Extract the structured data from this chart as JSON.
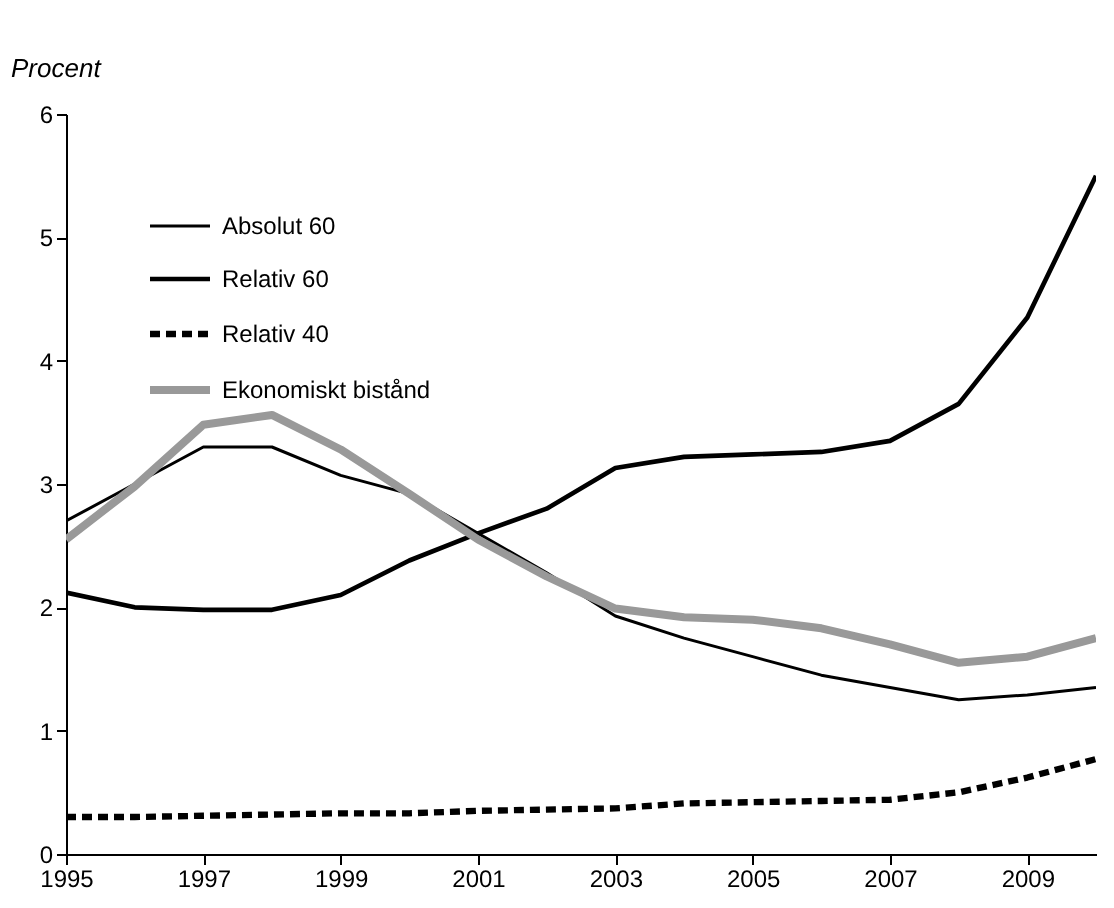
{
  "chart_data": {
    "type": "line",
    "ylabel": "Procent",
    "x": [
      1995,
      1996,
      1997,
      1998,
      1999,
      2000,
      2001,
      2002,
      2003,
      2004,
      2005,
      2006,
      2007,
      2008,
      2009,
      2010
    ],
    "series": [
      {
        "name": "Absolut 60",
        "color": "#000000",
        "line_style": "solid",
        "values": [
          2.7,
          3.0,
          3.3,
          3.3,
          3.07,
          2.92,
          2.6,
          2.28,
          1.93,
          1.75,
          1.6,
          1.45,
          1.35,
          1.25,
          1.29,
          1.35
        ]
      },
      {
        "name": "Relativ 60",
        "color": "#000000",
        "line_style": "solid",
        "values": [
          2.12,
          2.0,
          1.98,
          1.98,
          2.1,
          2.38,
          2.6,
          2.8,
          3.13,
          3.22,
          3.24,
          3.26,
          3.35,
          3.65,
          4.35,
          5.5
        ]
      },
      {
        "name": "Relativ 40",
        "color": "#000000",
        "line_style": "dashed",
        "values": [
          0.3,
          0.3,
          0.31,
          0.32,
          0.33,
          0.33,
          0.35,
          0.36,
          0.37,
          0.41,
          0.42,
          0.43,
          0.44,
          0.5,
          0.62,
          0.77
        ]
      },
      {
        "name": "Ekonomiskt bistånd",
        "color": "#999999",
        "line_style": "solid",
        "values": [
          2.55,
          2.98,
          3.48,
          3.56,
          3.28,
          2.92,
          2.55,
          2.25,
          1.99,
          1.92,
          1.9,
          1.83,
          1.7,
          1.55,
          1.6,
          1.75
        ]
      }
    ],
    "xlim": [
      1995,
      2010
    ],
    "xticks": [
      1995,
      1997,
      1999,
      2001,
      2003,
      2005,
      2007,
      2009
    ],
    "ylim": [
      0,
      6
    ],
    "yticks": [
      0,
      1,
      2,
      3,
      4,
      5,
      6
    ],
    "grid": false,
    "legend": "top left",
    "marker": "none"
  }
}
